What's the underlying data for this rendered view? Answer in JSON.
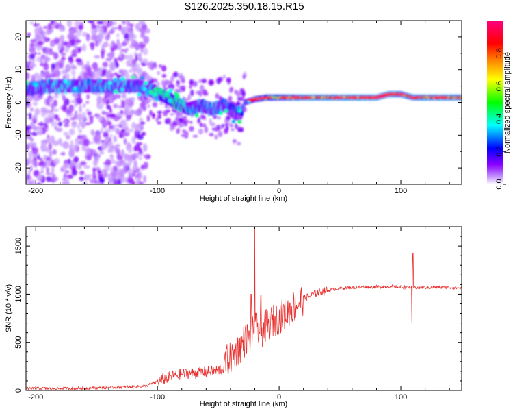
{
  "title": "S126.2025.350.18.15.R15",
  "chart_data": [
    {
      "type": "heatmap",
      "xlabel": "Height of straight line (km)",
      "ylabel": "Frequency (Hz)",
      "xlim": [
        -208,
        150
      ],
      "ylim": [
        -25,
        25
      ],
      "xticks": [
        -200,
        -100,
        0,
        100
      ],
      "yticks": [
        -20,
        -10,
        0,
        10,
        20
      ],
      "colorbar": {
        "label": "Normalized spectral amplitude",
        "range": [
          0.0,
          1.0
        ],
        "ticks": [
          "0.0",
          "0.2",
          "0.4",
          "0.6",
          "0.8"
        ],
        "colors": [
          "#ffffff",
          "#8a00ff",
          "#0000ff",
          "#00ffff",
          "#00ff00",
          "#ffff00",
          "#ff7f00",
          "#ff0000",
          "#ff0080"
        ]
      },
      "ridge": {
        "x": [
          -208,
          -190,
          -170,
          -150,
          -130,
          -115,
          -105,
          -95,
          -85,
          -75,
          -65,
          -55,
          -45,
          -38,
          -32,
          -28,
          -20,
          -10,
          0,
          10,
          20,
          40,
          60,
          80,
          90,
          100,
          110,
          120,
          150
        ],
        "frequency_hz": [
          4,
          5,
          5,
          5,
          5,
          5,
          3.5,
          2,
          0,
          -2,
          -1,
          -2,
          -1,
          -3,
          -4,
          0,
          1,
          1.5,
          1.5,
          1.5,
          1.5,
          1.5,
          1.5,
          1.5,
          2.5,
          2.5,
          1.5,
          1.5,
          1.5
        ],
        "amplitude": [
          0.3,
          0.35,
          0.35,
          0.35,
          0.35,
          0.3,
          0.4,
          0.45,
          0.5,
          0.35,
          0.3,
          0.35,
          0.3,
          0.25,
          0.25,
          0.3,
          0.5,
          0.6,
          0.7,
          0.75,
          0.85,
          0.85,
          0.85,
          0.85,
          0.85,
          0.8,
          0.85,
          0.85,
          0.85
        ]
      }
    },
    {
      "type": "line",
      "xlabel": "Height of straight line (km)",
      "ylabel": "SNR (10 * v/v)",
      "xlim": [
        -208,
        150
      ],
      "ylim": [
        0,
        1700
      ],
      "xticks": [
        -200,
        -100,
        0,
        100
      ],
      "yticks": [
        0,
        500,
        1000,
        1500
      ],
      "color": "#e8312f",
      "x": [
        -208,
        -180,
        -150,
        -130,
        -110,
        -100,
        -90,
        -80,
        -70,
        -60,
        -50,
        -40,
        -35,
        -30,
        -25,
        -20,
        -15,
        -10,
        -5,
        0,
        5,
        10,
        15,
        20,
        30,
        40,
        50,
        60,
        70,
        80,
        90,
        100,
        105,
        110,
        115,
        120,
        130,
        140,
        150
      ],
      "y": [
        20,
        20,
        25,
        35,
        45,
        90,
        140,
        170,
        180,
        190,
        210,
        260,
        330,
        420,
        500,
        650,
        600,
        680,
        720,
        760,
        800,
        850,
        900,
        950,
        1010,
        1040,
        1060,
        1070,
        1075,
        1075,
        1080,
        1075,
        1070,
        1070,
        1065,
        1070,
        1070,
        1070,
        1065
      ],
      "spikes": [
        {
          "x": -20,
          "y": 1690
        },
        {
          "x": -23,
          "y": 1000
        },
        {
          "x": -15,
          "y": 990
        },
        {
          "x": 110,
          "y": 1420
        },
        {
          "x": 109,
          "y": 710
        }
      ]
    }
  ]
}
